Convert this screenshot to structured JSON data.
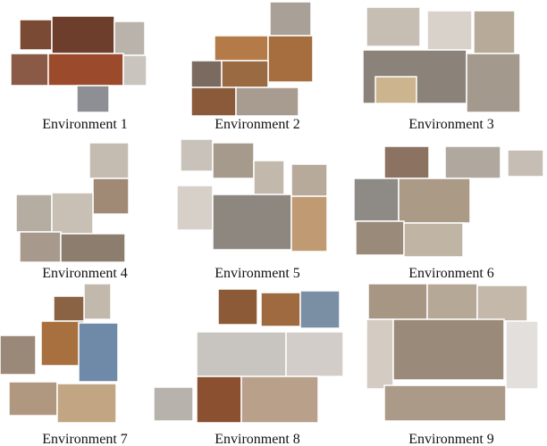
{
  "figure": {
    "panels": [
      {
        "caption": "Environment 1"
      },
      {
        "caption": "Environment 2"
      },
      {
        "caption": "Environment 3"
      },
      {
        "caption": "Environment 4"
      },
      {
        "caption": "Environment 5"
      },
      {
        "caption": "Environment 6"
      },
      {
        "caption": "Environment 7"
      },
      {
        "caption": "Environment 8"
      },
      {
        "caption": "Environment 9"
      }
    ]
  }
}
